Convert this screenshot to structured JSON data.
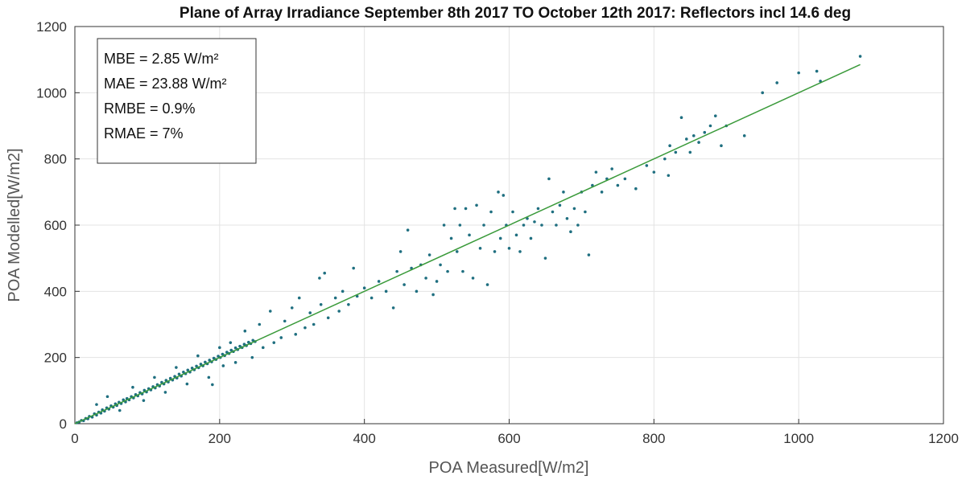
{
  "chart_data": {
    "type": "scatter",
    "title": "Plane of Array Irradiance September 8th 2017 TO October 12th 2017: Reflectors incl 14.6 deg",
    "xlabel": "POA Measured[W/m2]",
    "ylabel": "POA Modelled[W/m2]",
    "xlim": [
      0,
      1200
    ],
    "ylim": [
      0,
      1200
    ],
    "xticks": [
      0,
      200,
      400,
      600,
      800,
      1000,
      1200
    ],
    "yticks": [
      0,
      200,
      400,
      600,
      800,
      1000,
      1200
    ],
    "grid": true,
    "legend_position": "top-left",
    "stats": [
      "MBE = 2.85 W/m²",
      "MAE = 23.88 W/m²",
      "RMBE = 0.9%",
      "RMAE = 7%"
    ],
    "fit_line": {
      "x": [
        0,
        1085
      ],
      "y": [
        0,
        1085
      ],
      "color": "#3a9a3a"
    },
    "point_color": "#1f6f80",
    "points": [
      [
        3,
        3
      ],
      [
        6,
        5
      ],
      [
        9,
        10
      ],
      [
        12,
        9
      ],
      [
        15,
        16
      ],
      [
        18,
        15
      ],
      [
        20,
        22
      ],
      [
        24,
        20
      ],
      [
        27,
        30
      ],
      [
        30,
        26
      ],
      [
        33,
        35
      ],
      [
        36,
        32
      ],
      [
        38,
        42
      ],
      [
        41,
        38
      ],
      [
        44,
        48
      ],
      [
        47,
        44
      ],
      [
        50,
        54
      ],
      [
        53,
        50
      ],
      [
        56,
        60
      ],
      [
        58,
        55
      ],
      [
        61,
        65
      ],
      [
        64,
        61
      ],
      [
        67,
        72
      ],
      [
        70,
        66
      ],
      [
        72,
        76
      ],
      [
        75,
        72
      ],
      [
        78,
        82
      ],
      [
        81,
        78
      ],
      [
        84,
        88
      ],
      [
        87,
        84
      ],
      [
        90,
        94
      ],
      [
        93,
        90
      ],
      [
        96,
        101
      ],
      [
        99,
        96
      ],
      [
        102,
        106
      ],
      [
        105,
        102
      ],
      [
        108,
        112
      ],
      [
        111,
        108
      ],
      [
        114,
        118
      ],
      [
        117,
        114
      ],
      [
        120,
        125
      ],
      [
        123,
        120
      ],
      [
        126,
        131
      ],
      [
        129,
        126
      ],
      [
        132,
        137
      ],
      [
        135,
        132
      ],
      [
        138,
        143
      ],
      [
        141,
        138
      ],
      [
        144,
        150
      ],
      [
        147,
        144
      ],
      [
        150,
        156
      ],
      [
        153,
        151
      ],
      [
        156,
        162
      ],
      [
        159,
        156
      ],
      [
        162,
        168
      ],
      [
        165,
        163
      ],
      [
        168,
        174
      ],
      [
        171,
        169
      ],
      [
        174,
        180
      ],
      [
        177,
        175
      ],
      [
        180,
        186
      ],
      [
        183,
        181
      ],
      [
        186,
        192
      ],
      [
        189,
        187
      ],
      [
        192,
        198
      ],
      [
        195,
        194
      ],
      [
        198,
        204
      ],
      [
        201,
        200
      ],
      [
        204,
        210
      ],
      [
        207,
        206
      ],
      [
        210,
        216
      ],
      [
        213,
        212
      ],
      [
        216,
        222
      ],
      [
        219,
        218
      ],
      [
        222,
        229
      ],
      [
        225,
        224
      ],
      [
        228,
        234
      ],
      [
        231,
        230
      ],
      [
        234,
        240
      ],
      [
        237,
        236
      ],
      [
        240,
        246
      ],
      [
        243,
        242
      ],
      [
        246,
        252
      ],
      [
        249,
        248
      ],
      [
        30,
        58
      ],
      [
        45,
        82
      ],
      [
        62,
        40
      ],
      [
        80,
        110
      ],
      [
        95,
        70
      ],
      [
        110,
        140
      ],
      [
        125,
        95
      ],
      [
        140,
        170
      ],
      [
        155,
        120
      ],
      [
        170,
        205
      ],
      [
        185,
        140
      ],
      [
        190,
        118
      ],
      [
        200,
        230
      ],
      [
        205,
        175
      ],
      [
        215,
        245
      ],
      [
        222,
        185
      ],
      [
        235,
        280
      ],
      [
        245,
        200
      ],
      [
        255,
        300
      ],
      [
        260,
        230
      ],
      [
        270,
        340
      ],
      [
        275,
        245
      ],
      [
        285,
        260
      ],
      [
        290,
        310
      ],
      [
        300,
        350
      ],
      [
        305,
        270
      ],
      [
        310,
        380
      ],
      [
        318,
        290
      ],
      [
        325,
        335
      ],
      [
        330,
        300
      ],
      [
        338,
        440
      ],
      [
        340,
        360
      ],
      [
        345,
        455
      ],
      [
        350,
        320
      ],
      [
        360,
        380
      ],
      [
        365,
        340
      ],
      [
        370,
        400
      ],
      [
        378,
        360
      ],
      [
        385,
        470
      ],
      [
        390,
        385
      ],
      [
        400,
        410
      ],
      [
        410,
        380
      ],
      [
        420,
        430
      ],
      [
        430,
        400
      ],
      [
        440,
        350
      ],
      [
        445,
        460
      ],
      [
        450,
        520
      ],
      [
        455,
        420
      ],
      [
        460,
        585
      ],
      [
        465,
        470
      ],
      [
        472,
        400
      ],
      [
        478,
        480
      ],
      [
        485,
        440
      ],
      [
        490,
        510
      ],
      [
        495,
        390
      ],
      [
        500,
        430
      ],
      [
        505,
        480
      ],
      [
        510,
        600
      ],
      [
        515,
        460
      ],
      [
        520,
        560
      ],
      [
        525,
        650
      ],
      [
        528,
        520
      ],
      [
        532,
        600
      ],
      [
        536,
        460
      ],
      [
        540,
        650
      ],
      [
        545,
        570
      ],
      [
        550,
        440
      ],
      [
        555,
        660
      ],
      [
        560,
        530
      ],
      [
        565,
        600
      ],
      [
        570,
        420
      ],
      [
        575,
        640
      ],
      [
        580,
        520
      ],
      [
        585,
        700
      ],
      [
        588,
        560
      ],
      [
        592,
        690
      ],
      [
        596,
        600
      ],
      [
        600,
        530
      ],
      [
        605,
        640
      ],
      [
        610,
        570
      ],
      [
        615,
        520
      ],
      [
        620,
        600
      ],
      [
        625,
        620
      ],
      [
        630,
        560
      ],
      [
        635,
        610
      ],
      [
        640,
        650
      ],
      [
        645,
        600
      ],
      [
        650,
        500
      ],
      [
        655,
        740
      ],
      [
        660,
        640
      ],
      [
        665,
        600
      ],
      [
        670,
        660
      ],
      [
        675,
        700
      ],
      [
        680,
        620
      ],
      [
        685,
        580
      ],
      [
        690,
        650
      ],
      [
        695,
        600
      ],
      [
        700,
        700
      ],
      [
        705,
        640
      ],
      [
        710,
        510
      ],
      [
        715,
        720
      ],
      [
        720,
        760
      ],
      [
        728,
        700
      ],
      [
        735,
        740
      ],
      [
        742,
        770
      ],
      [
        750,
        720
      ],
      [
        760,
        740
      ],
      [
        775,
        710
      ],
      [
        790,
        780
      ],
      [
        800,
        760
      ],
      [
        815,
        800
      ],
      [
        820,
        750
      ],
      [
        822,
        840
      ],
      [
        830,
        820
      ],
      [
        838,
        925
      ],
      [
        845,
        860
      ],
      [
        850,
        820
      ],
      [
        855,
        870
      ],
      [
        862,
        850
      ],
      [
        870,
        880
      ],
      [
        878,
        900
      ],
      [
        885,
        930
      ],
      [
        893,
        840
      ],
      [
        900,
        900
      ],
      [
        925,
        870
      ],
      [
        950,
        1000
      ],
      [
        970,
        1030
      ],
      [
        1000,
        1060
      ],
      [
        1025,
        1065
      ],
      [
        1030,
        1035
      ],
      [
        1085,
        1110
      ]
    ]
  }
}
